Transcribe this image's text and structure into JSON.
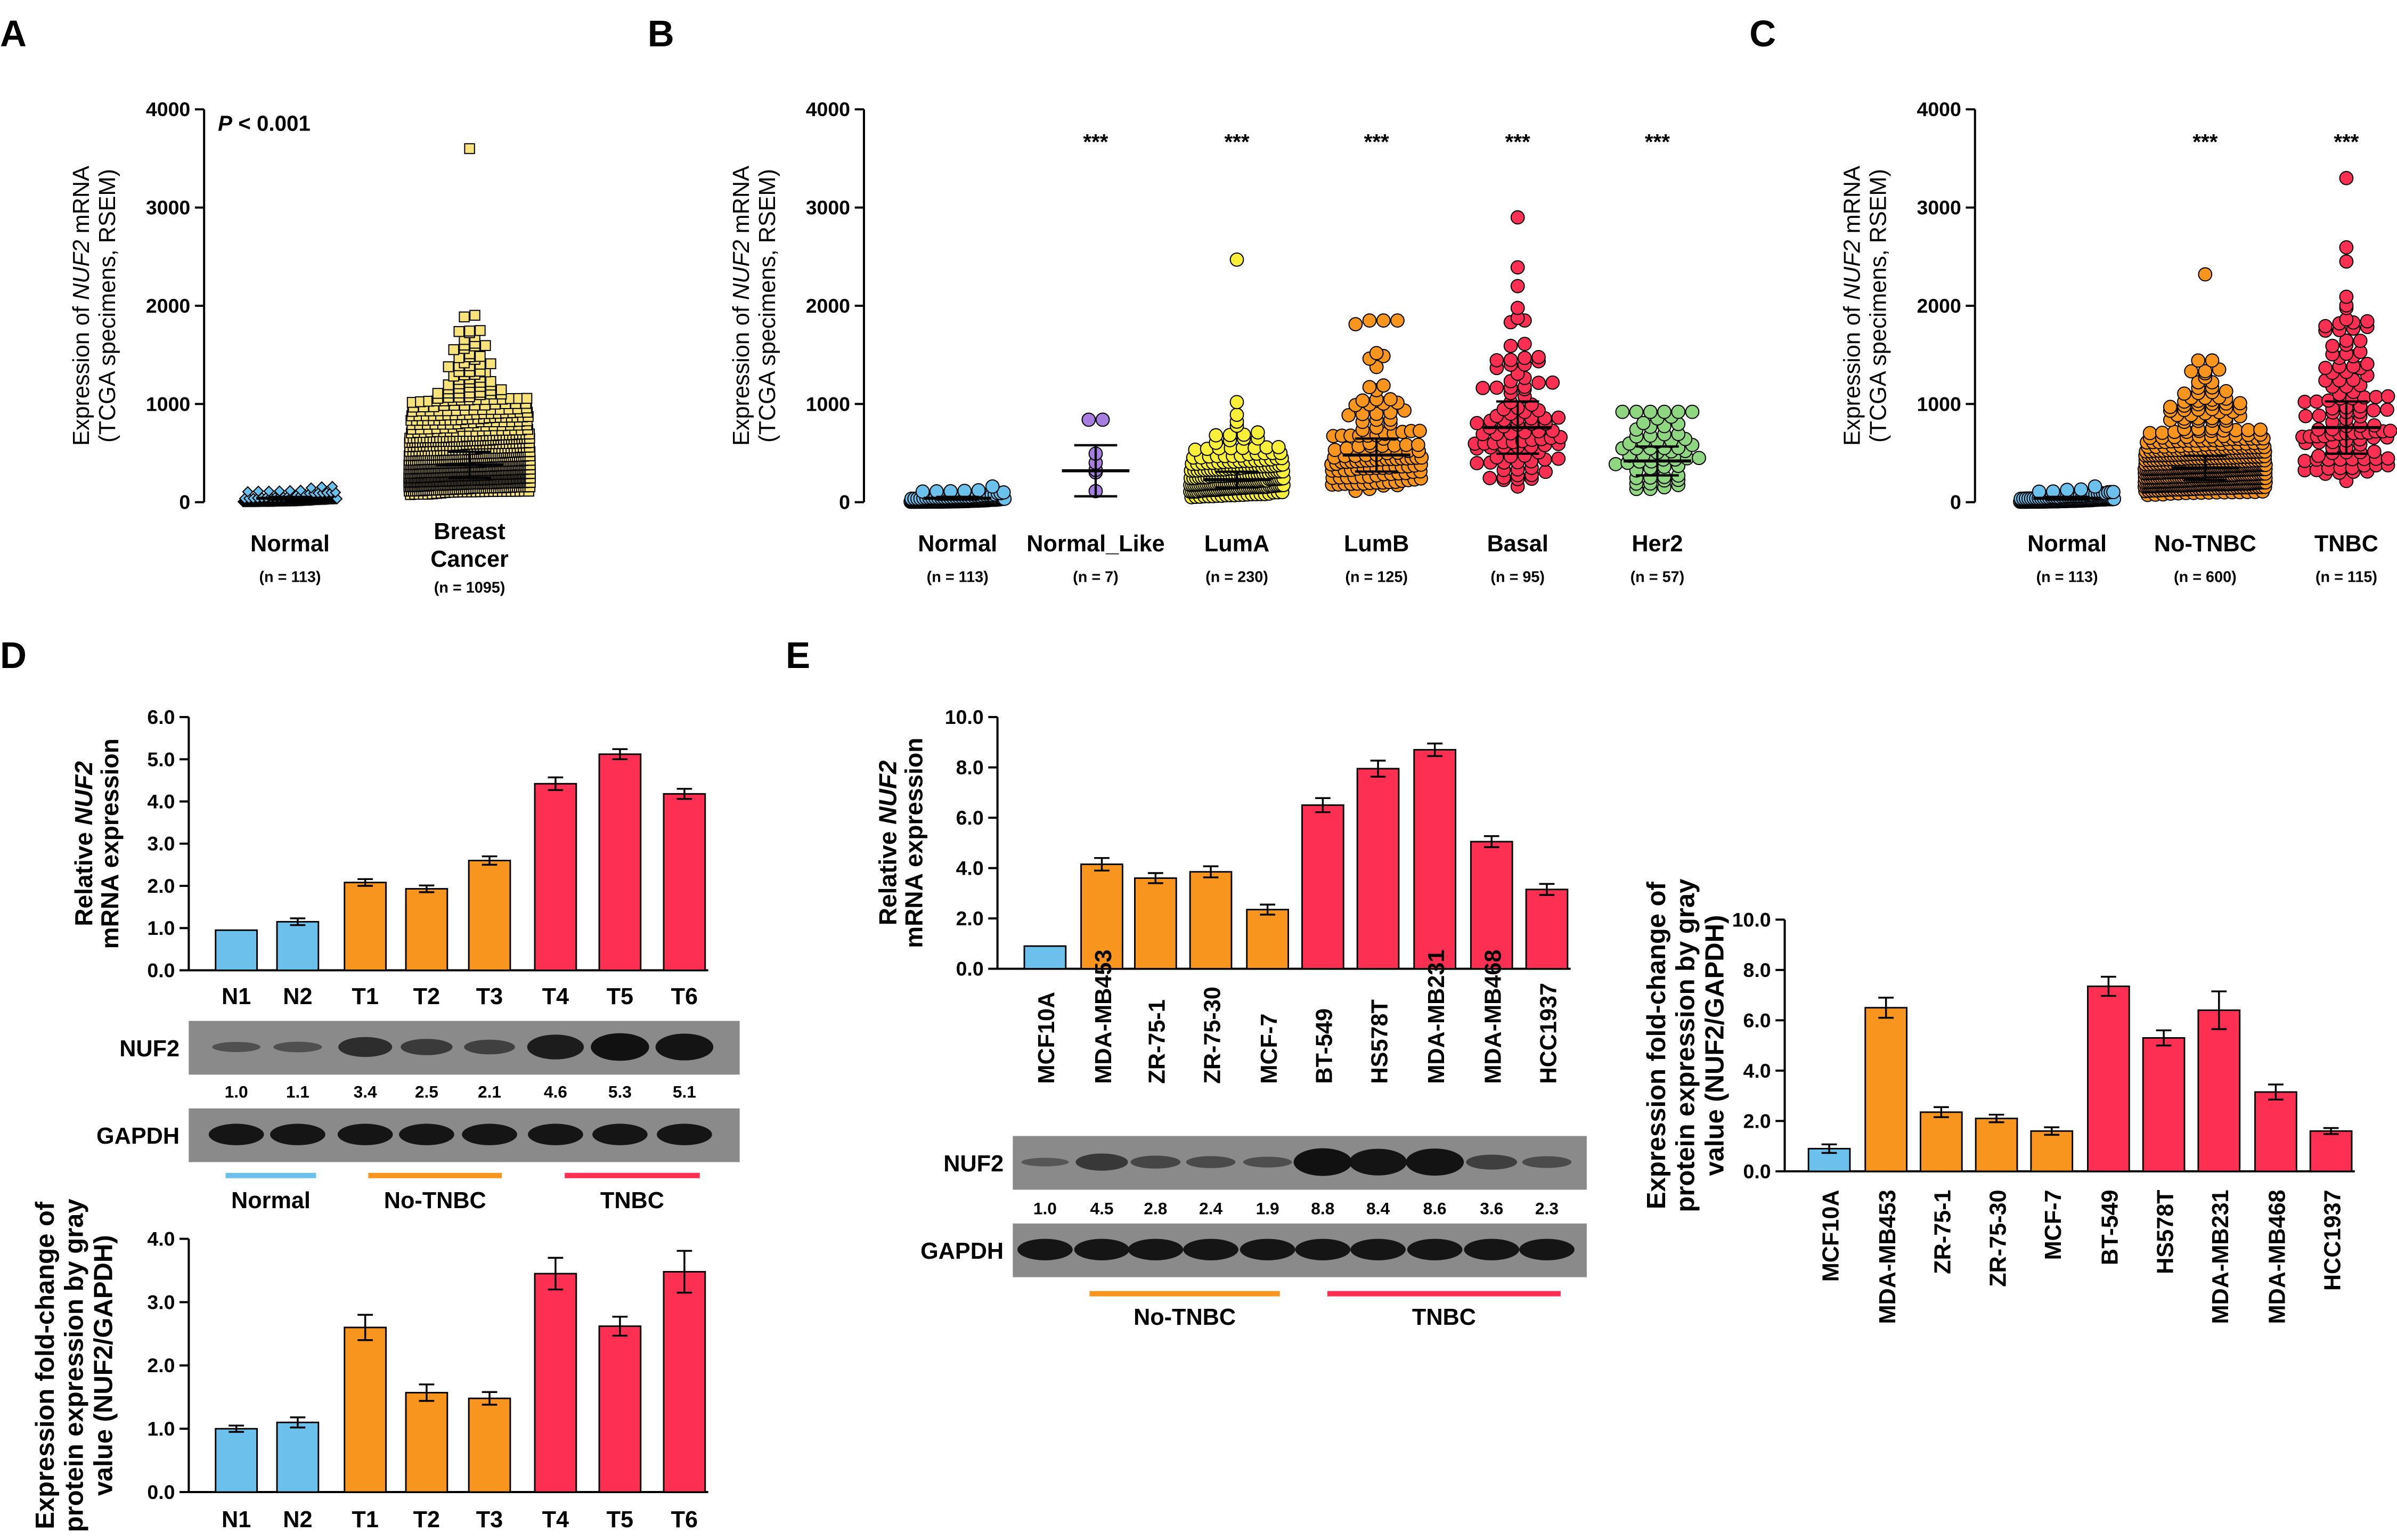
{
  "colors": {
    "normal": "#6cc0ec",
    "non_tnbc": "#f7951f",
    "tnbc": "#fd3053",
    "normal_like": "#a77ee0",
    "luma": "#f8ef3a",
    "her2": "#8fd680",
    "breast": "#f8e37a"
  },
  "chart_data": [
    {
      "panel": "A",
      "type": "scatter",
      "ylabel": [
        "Expression of ",
        "NUF2",
        " mRNA",
        "(TCGA specimens, RSEM)"
      ],
      "ylim": [
        0,
        4000
      ],
      "yticks": [
        "0",
        "1000",
        "2000",
        "3000",
        "4000"
      ],
      "annotation": "P < 0.001",
      "groups": [
        {
          "label": "Normal",
          "n_label": "(n = 113)",
          "n": 113,
          "center": 40,
          "max": 160,
          "color": "normal",
          "marker": "diamond"
        },
        {
          "label": "Breast\nCancer",
          "n_label": "(n = 1095)",
          "n": 1095,
          "center": 380,
          "max": 3600,
          "color": "breast",
          "marker": "square"
        }
      ]
    },
    {
      "panel": "B",
      "type": "scatter",
      "ylabel": [
        "Expression of ",
        "NUF2",
        " mRNA",
        "(TCGA specimens, RSEM)"
      ],
      "ylim": [
        0,
        4000
      ],
      "yticks": [
        "0",
        "1000",
        "2000",
        "3000",
        "4000"
      ],
      "groups": [
        {
          "label": "Normal",
          "n_label": "(n = 113)",
          "n": 113,
          "center": 40,
          "max": 160,
          "color": "normal",
          "sig": ""
        },
        {
          "label": "Normal_Like",
          "n_label": "(n = 7)",
          "n": 7,
          "center": 320,
          "max": 840,
          "color": "normal_like",
          "sig": "***"
        },
        {
          "label": "LumA",
          "n_label": "(n = 230)",
          "n": 230,
          "center": 230,
          "max": 2470,
          "color": "luma",
          "sig": "***"
        },
        {
          "label": "LumB",
          "n_label": "(n = 125)",
          "n": 125,
          "center": 480,
          "max": 1850,
          "color": "non_tnbc",
          "sig": "***"
        },
        {
          "label": "Basal",
          "n_label": "(n = 95)",
          "n": 95,
          "center": 760,
          "max": 2900,
          "color": "tnbc",
          "sig": "***"
        },
        {
          "label": "Her2",
          "n_label": "(n = 57)",
          "n": 57,
          "center": 420,
          "max": 920,
          "color": "her2",
          "sig": "***"
        }
      ]
    },
    {
      "panel": "C",
      "type": "scatter",
      "ylabel": [
        "Expression of ",
        "NUF2",
        " mRNA",
        "(TCGA specimens, RSEM)"
      ],
      "ylim": [
        0,
        4000
      ],
      "yticks": [
        "0",
        "1000",
        "2000",
        "3000",
        "4000"
      ],
      "groups": [
        {
          "label": "Normal",
          "n_label": "(n = 113)",
          "n": 113,
          "center": 40,
          "max": 160,
          "color": "normal",
          "sig": ""
        },
        {
          "label": "No-TNBC",
          "n_label": "(n = 600)",
          "n": 600,
          "center": 350,
          "max": 2320,
          "color": "non_tnbc",
          "sig": "***"
        },
        {
          "label": "TNBC",
          "n_label": "(n = 115)",
          "n": 115,
          "center": 760,
          "max": 3300,
          "color": "tnbc",
          "sig": "***"
        }
      ]
    },
    {
      "panel": "D",
      "type": "bar",
      "part": "mRNA",
      "ylabel": [
        "Relative ",
        "NUF2",
        "",
        "mRNA expression"
      ],
      "ylim": [
        0,
        6
      ],
      "yticks": [
        "0.0",
        "1.0",
        "2.0",
        "3.0",
        "4.0",
        "5.0",
        "6.0"
      ],
      "categories": [
        "N1",
        "N2",
        "T1",
        "T2",
        "T3",
        "T4",
        "T5",
        "T6"
      ],
      "values": [
        0.95,
        1.15,
        2.08,
        1.93,
        2.6,
        4.42,
        5.12,
        4.18
      ],
      "errors": [
        0,
        0.08,
        0.08,
        0.08,
        0.1,
        0.15,
        0.12,
        0.12
      ],
      "colors": [
        "normal",
        "normal",
        "non_tnbc",
        "non_tnbc",
        "non_tnbc",
        "tnbc",
        "tnbc",
        "tnbc"
      ]
    },
    {
      "panel": "D",
      "type": "bar",
      "part": "protein",
      "ylabel": [
        "Expression fold-change of",
        "protein expression by gray",
        "value (NUF2/GAPDH)"
      ],
      "ylim": [
        0,
        4
      ],
      "yticks": [
        "0.0",
        "1.0",
        "2.0",
        "3.0",
        "4.0"
      ],
      "categories": [
        "N1",
        "N2",
        "T1",
        "T2",
        "T3",
        "T4",
        "T5",
        "T6"
      ],
      "values": [
        1.0,
        1.1,
        2.6,
        1.57,
        1.48,
        3.45,
        2.62,
        3.48
      ],
      "errors": [
        0.05,
        0.08,
        0.2,
        0.13,
        0.1,
        0.25,
        0.15,
        0.33
      ],
      "colors": [
        "normal",
        "normal",
        "non_tnbc",
        "non_tnbc",
        "non_tnbc",
        "tnbc",
        "tnbc",
        "tnbc"
      ]
    },
    {
      "panel": "E",
      "type": "bar",
      "part": "mRNA",
      "ylabel": [
        "Relative ",
        "NUF2",
        "",
        "mRNA expression"
      ],
      "ylim": [
        0,
        10
      ],
      "yticks": [
        "0.0",
        "2.0",
        "4.0",
        "6.0",
        "8.0",
        "10.0"
      ],
      "categories": [
        "MCF10A",
        "MDA-MB453",
        "ZR-75-1",
        "ZR-75-30",
        "MCF-7",
        "BT-549",
        "HS578T",
        "MDA-MB231",
        "MDA-MB468",
        "HCC1937"
      ],
      "values": [
        0.9,
        4.15,
        3.6,
        3.85,
        2.35,
        6.5,
        7.95,
        8.7,
        5.05,
        3.15
      ],
      "errors": [
        0,
        0.25,
        0.2,
        0.22,
        0.2,
        0.28,
        0.32,
        0.25,
        0.22,
        0.22
      ],
      "colors": [
        "normal",
        "non_tnbc",
        "non_tnbc",
        "non_tnbc",
        "non_tnbc",
        "tnbc",
        "tnbc",
        "tnbc",
        "tnbc",
        "tnbc"
      ]
    },
    {
      "panel": "E",
      "type": "bar",
      "part": "protein",
      "ylabel": [
        "Expression fold-change of",
        "protein expression by gray",
        "value (NUF2/GAPDH)"
      ],
      "ylim": [
        0,
        10
      ],
      "yticks": [
        "0.0",
        "2.0",
        "4.0",
        "6.0",
        "8.0",
        "10.0"
      ],
      "categories": [
        "MCF10A",
        "MDA-MB453",
        "ZR-75-1",
        "ZR-75-30",
        "MCF-7",
        "BT-549",
        "HS578T",
        "MDA-MB231",
        "MDA-MB468",
        "HCC1937"
      ],
      "values": [
        0.9,
        6.5,
        2.35,
        2.1,
        1.6,
        7.35,
        5.3,
        6.4,
        3.15,
        1.6
      ],
      "errors": [
        0.17,
        0.4,
        0.2,
        0.15,
        0.15,
        0.38,
        0.3,
        0.75,
        0.3,
        0.12
      ],
      "colors": [
        "normal",
        "non_tnbc",
        "non_tnbc",
        "non_tnbc",
        "non_tnbc",
        "tnbc",
        "tnbc",
        "tnbc",
        "tnbc",
        "tnbc"
      ]
    }
  ],
  "blots": {
    "D": {
      "nuf2_label": "NUF2",
      "gapdh_label": "GAPDH",
      "nuf2_values": [
        "1.0",
        "1.1",
        "3.4",
        "2.5",
        "2.1",
        "4.6",
        "5.3",
        "5.1"
      ],
      "groups": [
        {
          "label": "Normal",
          "color": "normal"
        },
        {
          "label": "No-TNBC",
          "color": "non_tnbc"
        },
        {
          "label": "TNBC",
          "color": "tnbc"
        }
      ]
    },
    "E": {
      "nuf2_label": "NUF2",
      "gapdh_label": "GAPDH",
      "nuf2_values": [
        "1.0",
        "4.5",
        "2.8",
        "2.4",
        "1.9",
        "8.8",
        "8.4",
        "8.6",
        "3.6",
        "2.3"
      ],
      "groups": [
        {
          "label": "No-TNBC",
          "color": "non_tnbc"
        },
        {
          "label": "TNBC",
          "color": "tnbc"
        }
      ]
    }
  },
  "panel_letters": [
    "A",
    "B",
    "C",
    "D",
    "E"
  ]
}
